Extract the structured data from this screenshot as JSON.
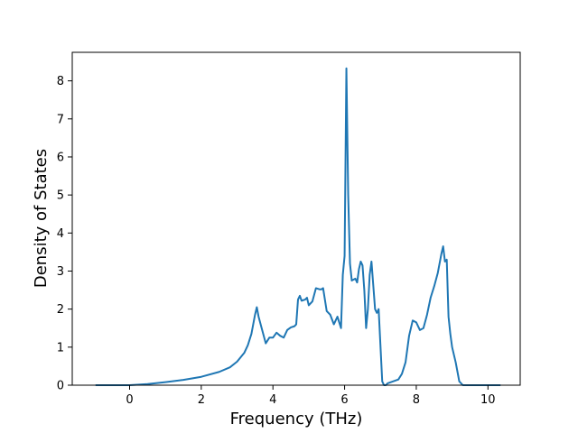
{
  "chart_data": {
    "type": "line",
    "title": "",
    "xlabel": "Frequency (THz)",
    "ylabel": "Density of States",
    "xlim": [
      -1.6,
      10.9
    ],
    "ylim": [
      0,
      8.75
    ],
    "xticks": [
      0,
      2,
      4,
      6,
      8,
      10
    ],
    "yticks": [
      0,
      1,
      2,
      3,
      4,
      5,
      6,
      7,
      8
    ],
    "grid": false,
    "legend": "none",
    "colors": {
      "series": "#1f77b4",
      "axes": "#000000",
      "background": "#ffffff"
    },
    "series": [
      {
        "x": [
          -0.95,
          -0.5,
          0.0,
          0.5,
          1.0,
          1.5,
          2.0,
          2.5,
          2.8,
          3.0,
          3.2,
          3.3,
          3.4,
          3.5,
          3.55,
          3.6,
          3.7,
          3.8,
          3.9,
          4.0,
          4.1,
          4.2,
          4.3,
          4.4,
          4.5,
          4.6,
          4.65,
          4.7,
          4.75,
          4.8,
          4.9,
          4.95,
          5.0,
          5.1,
          5.2,
          5.3,
          5.35,
          5.4,
          5.5,
          5.6,
          5.7,
          5.8,
          5.9,
          5.95,
          6.0,
          6.05,
          6.1,
          6.15,
          6.2,
          6.3,
          6.35,
          6.4,
          6.45,
          6.5,
          6.55,
          6.6,
          6.65,
          6.7,
          6.75,
          6.85,
          6.9,
          6.95,
          7.05,
          7.1,
          7.15,
          7.2,
          7.5,
          7.6,
          7.7,
          7.8,
          7.9,
          8.0,
          8.1,
          8.2,
          8.3,
          8.4,
          8.5,
          8.6,
          8.7,
          8.75,
          8.8,
          8.85,
          8.9,
          8.95,
          9.0,
          9.1,
          9.2,
          9.3,
          9.4,
          9.5,
          10.35
        ],
        "values": [
          0.0,
          0.0,
          0.0,
          0.03,
          0.08,
          0.14,
          0.22,
          0.35,
          0.47,
          0.62,
          0.85,
          1.05,
          1.35,
          1.85,
          2.05,
          1.8,
          1.45,
          1.1,
          1.25,
          1.25,
          1.38,
          1.3,
          1.25,
          1.45,
          1.52,
          1.55,
          1.6,
          2.25,
          2.35,
          2.22,
          2.25,
          2.3,
          2.1,
          2.2,
          2.55,
          2.52,
          2.52,
          2.55,
          1.95,
          1.85,
          1.6,
          1.8,
          1.5,
          2.9,
          3.4,
          8.33,
          5.0,
          3.2,
          2.75,
          2.8,
          2.7,
          3.05,
          3.25,
          3.15,
          2.5,
          1.5,
          2.0,
          2.9,
          3.25,
          2.0,
          1.9,
          2.0,
          0.1,
          0.0,
          0.0,
          0.05,
          0.15,
          0.3,
          0.6,
          1.3,
          1.7,
          1.65,
          1.45,
          1.5,
          1.85,
          2.3,
          2.6,
          2.95,
          3.45,
          3.65,
          3.25,
          3.3,
          1.8,
          1.35,
          1.0,
          0.6,
          0.1,
          0.0,
          0.0,
          0.0,
          0.0
        ]
      }
    ]
  }
}
